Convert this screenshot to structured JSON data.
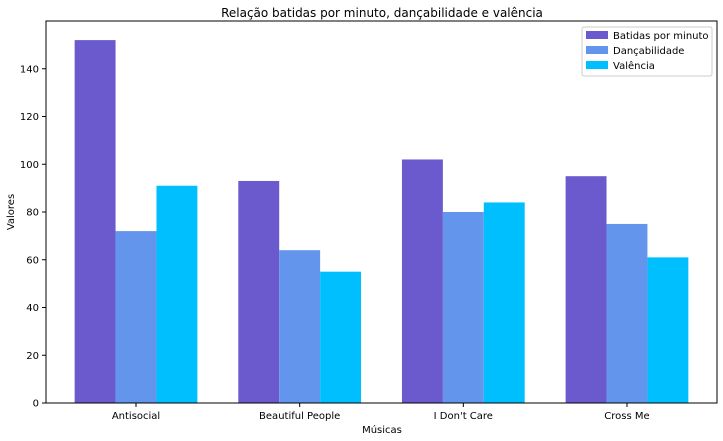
{
  "chart_data": {
    "type": "bar",
    "title": "Relação batidas por minuto, dançabilidade e valência",
    "xlabel": "Músicas",
    "ylabel": "Valores",
    "categories": [
      "Antisocial",
      "Beautiful People",
      "I Don't Care",
      "Cross Me"
    ],
    "series": [
      {
        "name": "Batidas por minuto",
        "color": "#6a5acd",
        "values": [
          152,
          93,
          102,
          95
        ]
      },
      {
        "name": "Dançabilidade",
        "color": "#6495ed",
        "values": [
          72,
          64,
          80,
          75
        ]
      },
      {
        "name": "Valência",
        "color": "#00bfff",
        "values": [
          91,
          55,
          84,
          61
        ]
      }
    ],
    "ylim": [
      0,
      160
    ],
    "yticks": [
      0,
      20,
      40,
      60,
      80,
      100,
      120,
      140
    ],
    "grid": false,
    "legend_position": "top-right"
  }
}
